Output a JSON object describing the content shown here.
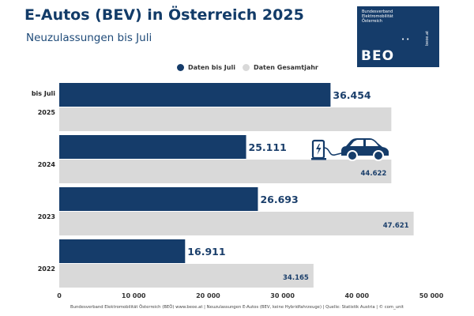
{
  "header": {
    "title": "E-Autos (BEV) in Österreich 2025",
    "subtitle": "Neuzulassungen bis Juli"
  },
  "logo": {
    "small_text": "Bundesverband\nElektromobilität\nÖsterreich",
    "wordmark": "BEO",
    "url": "beoe.at"
  },
  "colors": {
    "dark": "#153c6a",
    "light": "#d9d9d9",
    "label": "#1b3f6b"
  },
  "icon": "electric-car-charging-icon",
  "chart_data": {
    "type": "bar",
    "orientation": "horizontal",
    "categories": [
      "2025",
      "2024",
      "2023",
      "2022"
    ],
    "category_prefix": "bis Juli",
    "series": [
      {
        "name": "Daten bis Juli",
        "values": [
          36454,
          25111,
          26693,
          16911
        ],
        "labels": [
          "36.454",
          "25.111",
          "26.693",
          "16.911"
        ]
      },
      {
        "name": "Daten Gesamtjahr",
        "values": [
          44622,
          44622,
          47621,
          34165
        ],
        "labels": [
          "",
          "44.622",
          "47.621",
          "34.165"
        ]
      }
    ],
    "xlim": [
      0,
      50000
    ],
    "xticks": [
      0,
      10000,
      20000,
      30000,
      40000,
      50000
    ],
    "xtick_labels": [
      "0",
      "10 000",
      "20 000",
      "30 000",
      "40 000",
      "50 000"
    ],
    "legend_position": "top-center",
    "grid": false
  },
  "footer": "Bundesverband Elektromobilität Österreich (BEÖ) www.beoe.at | Neuzulassungen E-Autos (BEV, keine Hybridfahrzeuge) | Quelle: Statistik Austria | © com_unit"
}
